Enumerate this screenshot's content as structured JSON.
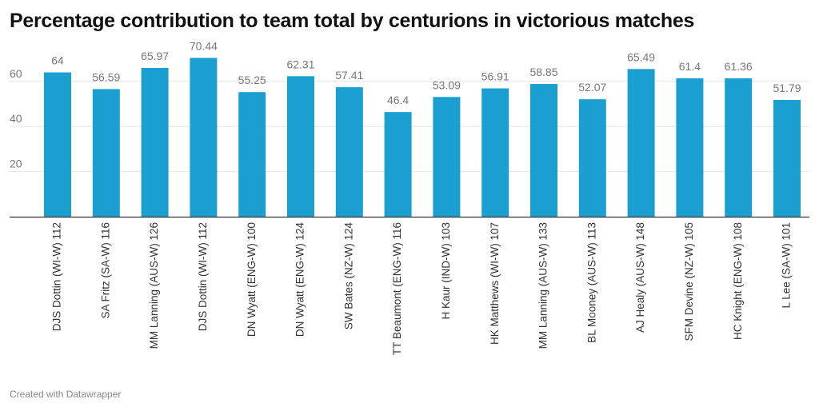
{
  "title": "Percentage contribution to team total by centurions in victorious matches",
  "footer": "Created with Datawrapper",
  "colors": {
    "bar": "#1b9fd0",
    "grid": "#e6e6e6",
    "axis": "#333333",
    "label": "#777777",
    "category": "#333333"
  },
  "chart_data": {
    "type": "bar",
    "title": "Percentage contribution to team total by centurions in victorious matches",
    "xlabel": "",
    "ylabel": "",
    "ylim": [
      0,
      75
    ],
    "yticks": [
      20,
      40,
      60
    ],
    "grid": true,
    "categories": [
      "DJS Dottin (WI-W) 112",
      "SA Fritz (SA-W) 116",
      "MM Lanning (AUS-W) 126",
      "DJS Dottin (WI-W) 112",
      "DN Wyatt (ENG-W) 100",
      "DN Wyatt (ENG-W) 124",
      "SW Bates (NZ-W) 124",
      "TT Beaumont (ENG-W) 116",
      "H Kaur (IND-W) 103",
      "HK Matthews (WI-W) 107",
      "MM Lanning (AUS-W) 133",
      "BL Mooney (AUS-W) 113",
      "AJ Healy (AUS-W) 148",
      "SFM Devine (NZ-W) 105",
      "HC Knight (ENG-W) 108",
      "L Lee (SA-W) 101"
    ],
    "values": [
      64,
      56.59,
      65.97,
      70.44,
      55.25,
      62.31,
      57.41,
      46.4,
      53.09,
      56.91,
      58.85,
      52.07,
      65.49,
      61.4,
      61.36,
      51.79
    ],
    "value_labels": [
      "64",
      "56.59",
      "65.97",
      "70.44",
      "55.25",
      "62.31",
      "57.41",
      "46.4",
      "53.09",
      "56.91",
      "58.85",
      "52.07",
      "65.49",
      "61.4",
      "61.36",
      "51.79"
    ]
  }
}
